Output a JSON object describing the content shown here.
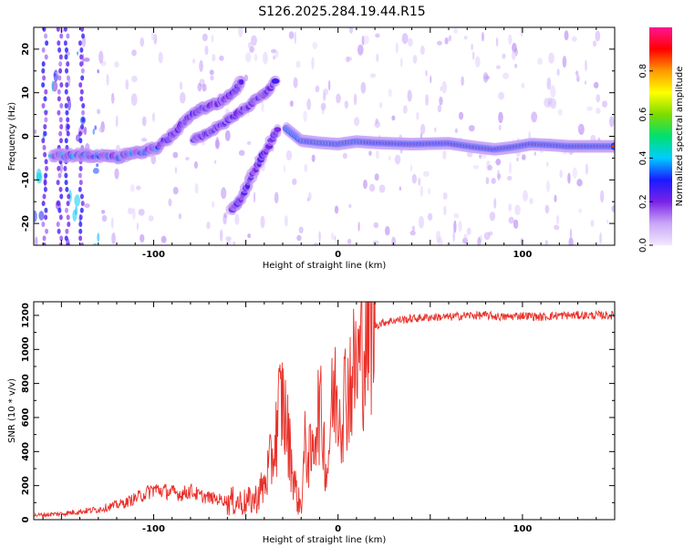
{
  "title": "S126.2025.284.19.44.R15",
  "colorbar": {
    "label": "Normalized spectral amplitude",
    "ticks": [
      "0.0",
      "0.2",
      "0.4",
      "0.6",
      "0.8"
    ],
    "range": [
      0,
      1
    ]
  },
  "chart_data": [
    {
      "type": "heatmap",
      "title": "",
      "xlabel": "Height of straight line (km)",
      "ylabel": "Frequency (Hz)",
      "xlim": [
        -165,
        150
      ],
      "ylim": [
        -25,
        25
      ],
      "xticks": [
        -100,
        0,
        100
      ],
      "yticks": [
        -20,
        -10,
        0,
        10,
        20
      ],
      "ridges": [
        {
          "name": "main",
          "x": [
            -155,
            -140,
            -120,
            -105,
            -98,
            -92,
            -88,
            -84,
            -80,
            -76,
            -72,
            -66,
            -60,
            -55,
            -52
          ],
          "y": [
            -4.5,
            -4.3,
            -4.8,
            -3.5,
            -2.5,
            -0.5,
            1,
            3.2,
            4.6,
            5.8,
            6.5,
            7.5,
            9,
            11,
            13
          ]
        },
        {
          "name": "branch-a",
          "x": [
            -78,
            -70,
            -62,
            -56,
            -50,
            -44,
            -38,
            -33
          ],
          "y": [
            -0.8,
            1,
            3,
            4.8,
            6.5,
            8.5,
            10.5,
            13.5
          ]
        },
        {
          "name": "branch-b",
          "x": [
            -58,
            -52,
            -48,
            -44,
            -40,
            -36,
            -32
          ],
          "y": [
            -17,
            -14,
            -10,
            -7,
            -4,
            -1,
            2
          ]
        },
        {
          "name": "carrier",
          "x": [
            -28,
            -20,
            -10,
            0,
            10,
            20,
            40,
            60,
            75,
            85,
            95,
            105,
            115,
            125,
            140,
            150
          ],
          "y": [
            1.8,
            -1,
            -1.5,
            -1.8,
            -1.2,
            -1.5,
            -1.8,
            -1.6,
            -2.5,
            -3,
            -2.5,
            -1.8,
            -2,
            -2.3,
            -2.3,
            -2.3
          ]
        }
      ]
    },
    {
      "type": "line",
      "title": "",
      "xlabel": "Height of straight line (km)",
      "ylabel": "SNR (10 * v/v)",
      "xlim": [
        -165,
        150
      ],
      "ylim": [
        0,
        1280
      ],
      "xticks": [
        -100,
        0,
        100
      ],
      "yticks": [
        0,
        200,
        400,
        600,
        800,
        1000,
        1200
      ],
      "series": [
        {
          "name": "SNR",
          "color": "#e8312a",
          "x": [
            -165,
            -150,
            -130,
            -115,
            -105,
            -100,
            -95,
            -90,
            -85,
            -80,
            -75,
            -70,
            -60,
            -50,
            -45,
            -40,
            -38,
            -36,
            -34,
            -32,
            -30,
            -28,
            -26,
            -24,
            -22,
            -20,
            -18,
            -16,
            -14,
            -12,
            -10,
            -8,
            -6,
            -4,
            -2,
            0,
            2,
            4,
            6,
            8,
            10,
            12,
            14,
            16,
            18,
            20,
            25,
            30,
            40,
            50,
            60,
            70,
            80,
            90,
            100,
            110,
            120,
            130,
            140,
            150
          ],
          "y": [
            25,
            35,
            60,
            100,
            150,
            180,
            170,
            160,
            150,
            170,
            140,
            130,
            110,
            100,
            120,
            200,
            280,
            350,
            450,
            650,
            700,
            550,
            400,
            250,
            120,
            80,
            420,
            380,
            350,
            600,
            650,
            500,
            250,
            600,
            750,
            700,
            650,
            750,
            800,
            850,
            900,
            950,
            1020,
            1100,
            1120,
            1140,
            1160,
            1170,
            1180,
            1190,
            1190,
            1200,
            1200,
            1190,
            1200,
            1190,
            1200,
            1200,
            1200,
            1200
          ]
        }
      ]
    }
  ]
}
